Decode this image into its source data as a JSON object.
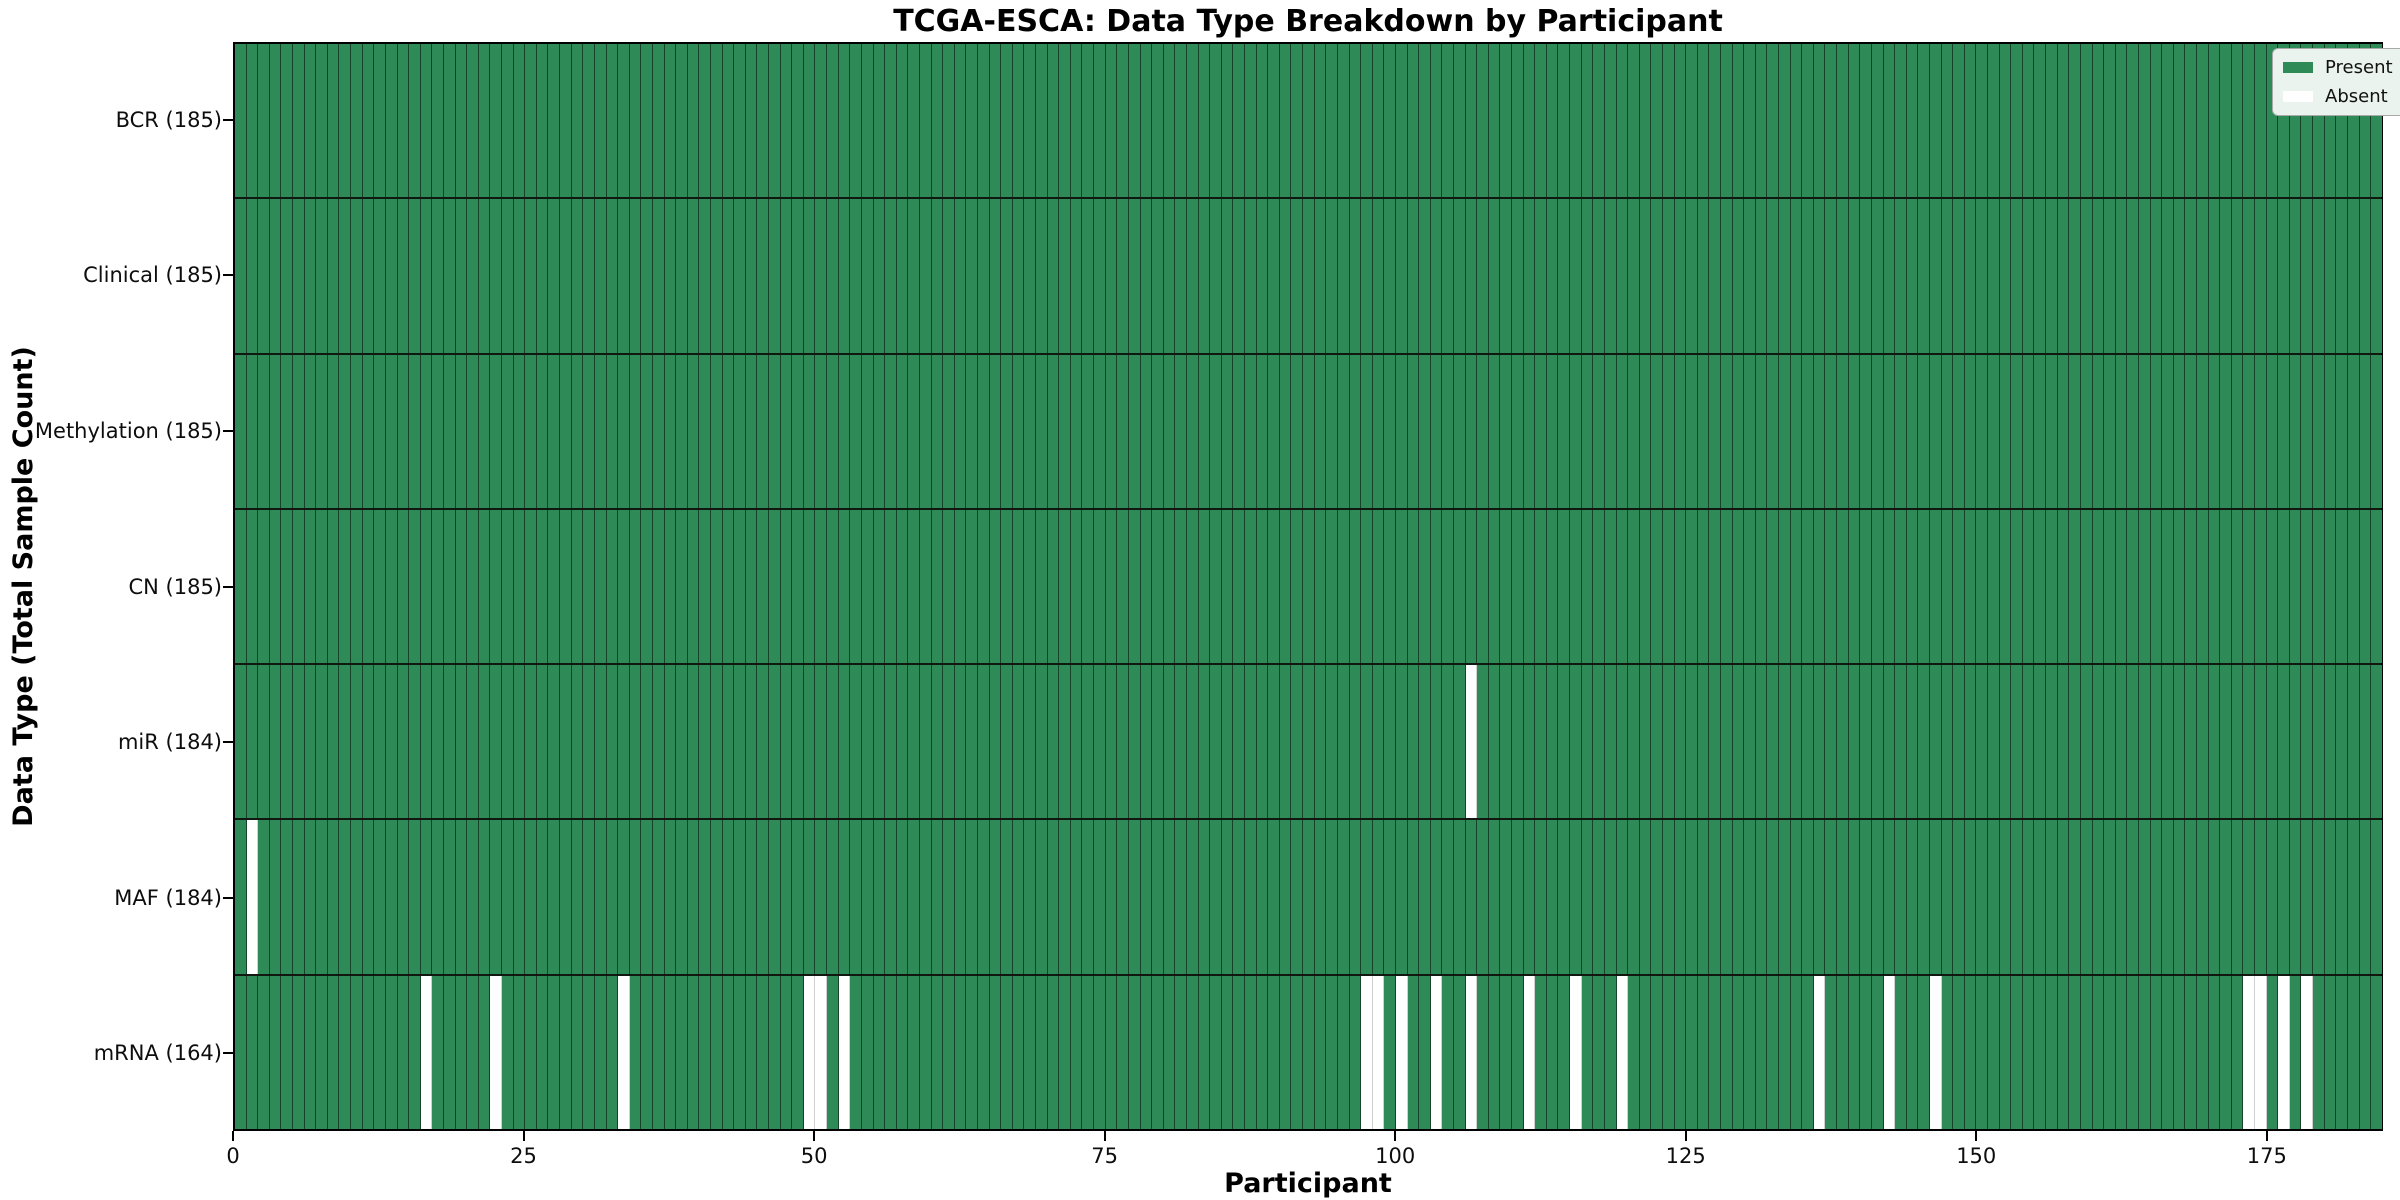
{
  "chart_data": {
    "type": "heatmap",
    "title": "TCGA-ESCA: Data Type Breakdown by Participant",
    "xlabel": "Participant",
    "ylabel": "Data Type (Total Sample Count)",
    "n_participants": 185,
    "x_ticks": [
      0,
      25,
      50,
      75,
      100,
      125,
      150,
      175
    ],
    "colors": {
      "present": "#2e8b57",
      "absent": "#ffffff"
    },
    "legend": [
      {
        "label": "Present",
        "color": "#2e8b57"
      },
      {
        "label": "Absent",
        "color": "#ffffff"
      }
    ],
    "legend_position": "upper right",
    "grid": false,
    "rows": [
      {
        "label": "BCR (185)",
        "data_type": "BCR",
        "total": 185,
        "absent_participants": []
      },
      {
        "label": "Clinical (185)",
        "data_type": "Clinical",
        "total": 185,
        "absent_participants": []
      },
      {
        "label": "Methylation (185)",
        "data_type": "Methylation",
        "total": 185,
        "absent_participants": []
      },
      {
        "label": "CN (185)",
        "data_type": "CN",
        "total": 185,
        "absent_participants": []
      },
      {
        "label": "miR (184)",
        "data_type": "miR",
        "total": 184,
        "absent_participants": [
          106
        ]
      },
      {
        "label": "MAF (184)",
        "data_type": "MAF",
        "total": 184,
        "absent_participants": [
          1
        ]
      },
      {
        "label": "mRNA (164)",
        "data_type": "mRNA",
        "total": 164,
        "absent_participants": [
          16,
          22,
          33,
          49,
          50,
          52,
          97,
          98,
          100,
          103,
          106,
          111,
          115,
          119,
          136,
          142,
          146,
          173,
          174,
          176,
          178
        ]
      }
    ]
  }
}
